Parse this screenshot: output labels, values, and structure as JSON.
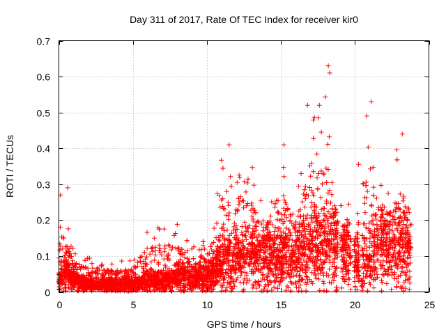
{
  "chart_data": {
    "type": "scatter",
    "title": "Day 311 of 2017, Rate Of TEC Index for receiver kir0",
    "xlabel": "GPS time / hours",
    "ylabel": "ROTI / TECUs",
    "xlim": [
      0,
      25
    ],
    "ylim": [
      0,
      0.7
    ],
    "x_ticks": [
      0,
      5,
      10,
      15,
      20,
      25
    ],
    "y_ticks": [
      0,
      0.1,
      0.2,
      0.3,
      0.4,
      0.5,
      0.6,
      0.7
    ],
    "x_tick_labels": [
      "0",
      "5",
      "10",
      "15",
      "20",
      "25"
    ],
    "y_tick_labels": [
      "0",
      "0.1",
      "0.2",
      "0.3",
      "0.4",
      "0.5",
      "0.6",
      "0.7"
    ],
    "grid": true,
    "marker": "+",
    "marker_color": "#ff0000",
    "series": [
      {
        "name": "ROTI",
        "envelope_x": [
          0,
          0.5,
          1,
          2,
          3,
          4,
          5,
          6,
          7,
          8,
          9,
          10,
          10.5,
          11,
          12,
          13,
          14,
          15,
          16,
          17,
          17.5,
          18,
          18.5,
          19,
          19.5,
          20,
          20.5,
          21,
          21.5,
          22,
          22.5,
          23,
          23.5,
          23.8
        ],
        "envelope_y_median": [
          0.03,
          0.05,
          0.03,
          0.02,
          0.02,
          0.02,
          0.02,
          0.03,
          0.03,
          0.04,
          0.04,
          0.04,
          0.06,
          0.08,
          0.09,
          0.1,
          0.1,
          0.09,
          0.1,
          0.12,
          0.14,
          0.13,
          0.12,
          0.1,
          0.1,
          0.08,
          0.08,
          0.1,
          0.12,
          0.12,
          0.12,
          0.12,
          0.12,
          0.12
        ],
        "envelope_y_high": [
          0.27,
          0.21,
          0.12,
          0.1,
          0.09,
          0.09,
          0.1,
          0.19,
          0.2,
          0.19,
          0.13,
          0.15,
          0.22,
          0.42,
          0.38,
          0.38,
          0.25,
          0.42,
          0.28,
          0.52,
          0.5,
          0.63,
          0.35,
          0.26,
          0.28,
          0.2,
          0.52,
          0.53,
          0.35,
          0.3,
          0.32,
          0.44,
          0.31,
          0.26
        ],
        "notable_points": [
          {
            "x": 0.1,
            "y": 0.27
          },
          {
            "x": 0.6,
            "y": 0.29
          },
          {
            "x": 11.5,
            "y": 0.41
          },
          {
            "x": 15.2,
            "y": 0.41
          },
          {
            "x": 16.8,
            "y": 0.52
          },
          {
            "x": 17.6,
            "y": 0.52
          },
          {
            "x": 18.2,
            "y": 0.63
          },
          {
            "x": 18.3,
            "y": 0.61
          },
          {
            "x": 20.8,
            "y": 0.49
          },
          {
            "x": 21.1,
            "y": 0.53
          },
          {
            "x": 23.2,
            "y": 0.44
          }
        ]
      }
    ]
  }
}
